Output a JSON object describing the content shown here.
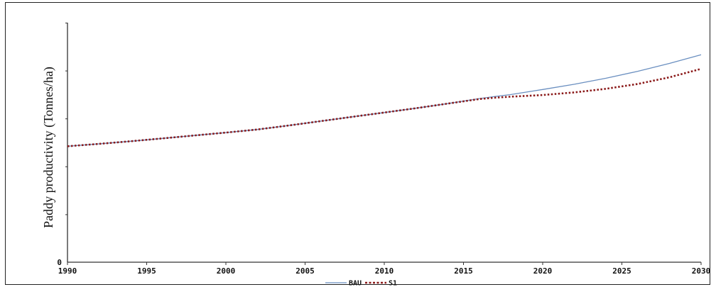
{
  "chart_data": {
    "type": "line",
    "title": "",
    "xlabel": "",
    "ylabel": "Paddy productivity (Tonnes/ha)",
    "x": [
      1990,
      1992,
      1994,
      1996,
      1998,
      2000,
      2002,
      2004,
      2006,
      2008,
      2010,
      2012,
      2014,
      2016,
      2017,
      2018,
      2020,
      2022,
      2024,
      2026,
      2028,
      2030
    ],
    "xlim": [
      1990,
      2030
    ],
    "xticks": [
      "1990",
      "1995",
      "2000",
      "2005",
      "2010",
      "2015",
      "2020",
      "2025",
      "2030"
    ],
    "yticks": [
      "0"
    ],
    "ylim": [
      0,
      1
    ],
    "series": [
      {
        "name": "BAU",
        "color": "#6a8fc0",
        "style": "solid",
        "values": [
          0.484,
          0.494,
          0.505,
          0.517,
          0.529,
          0.541,
          0.554,
          0.571,
          0.589,
          0.607,
          0.625,
          0.643,
          0.662,
          0.683,
          0.692,
          0.7,
          0.721,
          0.743,
          0.768,
          0.797,
          0.83,
          0.866
        ]
      },
      {
        "name": "S1",
        "color": "#8b1a1a",
        "style": "dotted",
        "values": [
          0.484,
          0.494,
          0.505,
          0.517,
          0.529,
          0.541,
          0.554,
          0.571,
          0.589,
          0.607,
          0.625,
          0.643,
          0.662,
          0.681,
          0.687,
          0.691,
          0.698,
          0.709,
          0.724,
          0.744,
          0.772,
          0.807
        ]
      }
    ],
    "legend_position": "bottom-center"
  }
}
